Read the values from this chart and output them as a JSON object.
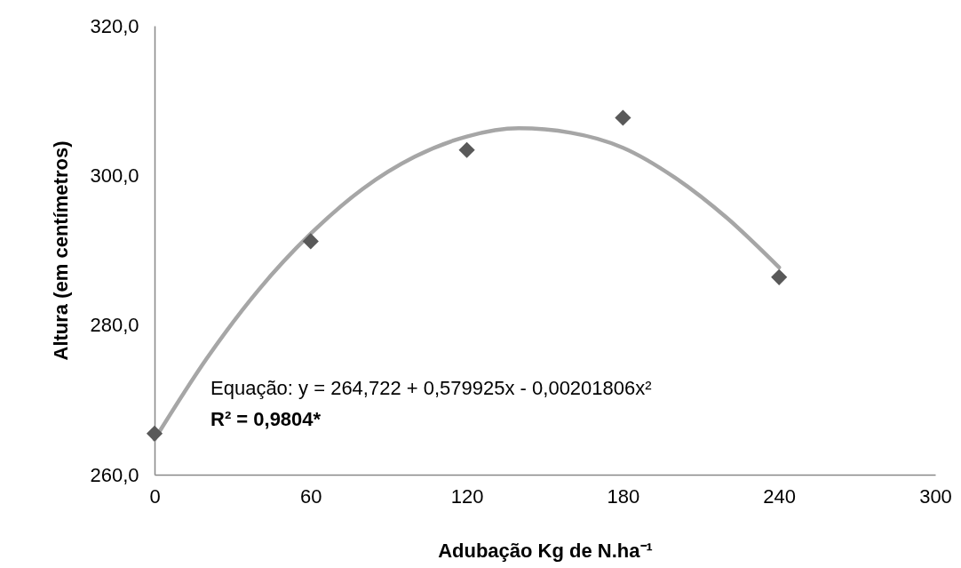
{
  "chart_data": {
    "type": "scatter",
    "xlabel": "Adubação Kg de N.ha⁻¹",
    "ylabel": "Altura (em centímetros)",
    "xlim": [
      0,
      300
    ],
    "xticks": [
      0,
      60,
      120,
      180,
      240,
      300
    ],
    "ylim": [
      260,
      320
    ],
    "yticks": [
      {
        "value": 260,
        "label": "260,0"
      },
      {
        "value": 280,
        "label": "280,0"
      },
      {
        "value": 300,
        "label": "300,0"
      },
      {
        "value": 320,
        "label": "320,0"
      }
    ],
    "grid": false,
    "series": [
      {
        "type": "line",
        "color": "#a6a6a6",
        "marker": "none",
        "x": [
          0,
          20,
          40,
          60,
          80,
          100,
          120,
          140,
          160,
          180,
          200,
          220,
          240
        ],
        "values": [
          264.7,
          275.5,
          284.7,
          292.2,
          298.2,
          302.5,
          305.2,
          306.3,
          305.7,
          303.7,
          299.7,
          294.3,
          287.7
        ]
      },
      {
        "type": "scatter",
        "color": "#595959",
        "marker": "diamond",
        "x": [
          0,
          60,
          120,
          180,
          240
        ],
        "values": [
          265.5,
          291.2,
          303.4,
          307.7,
          286.4
        ]
      }
    ],
    "annotations": [
      "Equação: y = 264,722 + 0,579925x - 0,00201806x²",
      "R² = 0,9804*"
    ]
  }
}
